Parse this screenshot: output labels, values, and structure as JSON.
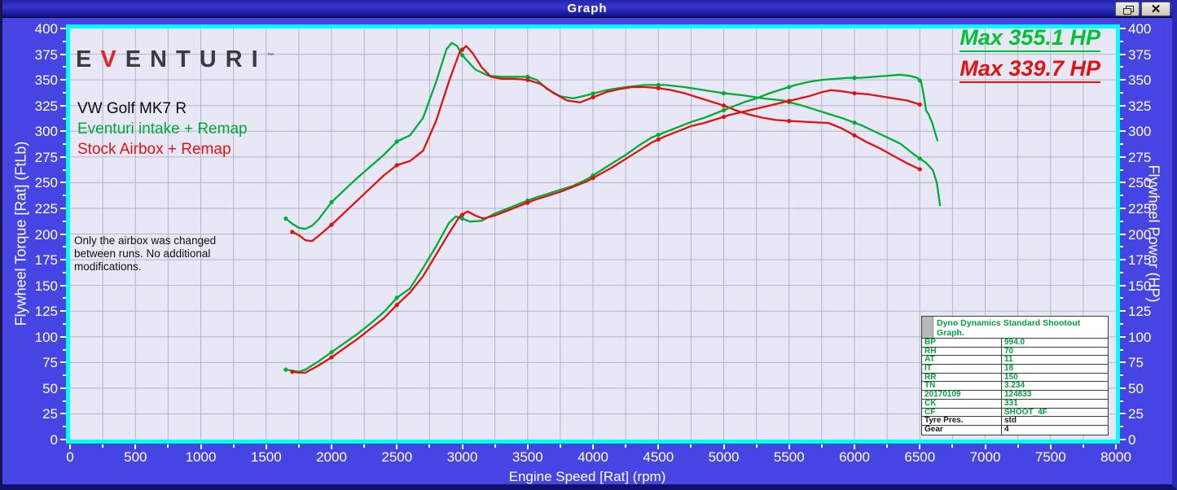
{
  "window": {
    "title": "Graph"
  },
  "branding": {
    "logo_e": "E",
    "logo_v": "V",
    "logo_rest": "ENTURI",
    "logo_tm": "TM"
  },
  "legend": {
    "vehicle": "VW Golf MK7 R",
    "run_green": "Eventuri intake + Remap",
    "run_red": "Stock Airbox + Remap"
  },
  "annotations": {
    "max_green": "Max 355.1 HP",
    "max_red": "Max 339.7 HP",
    "note_line1": "Only the airbox was changed",
    "note_line2": "between runs. No additional",
    "note_line3": "modifications."
  },
  "axes": {
    "x": {
      "label": "Engine Speed [Rat] (rpm)",
      "min": 0,
      "max": 8000,
      "tick_step": 500,
      "grid_step": 250
    },
    "y_left": {
      "label": "Flywheel Torque [Rat] (FtLb)",
      "min": 0,
      "max": 400,
      "tick_step": 25,
      "minor_step": 12.5
    },
    "y_right": {
      "label": "Flywheel Power (HP)",
      "min": 0,
      "max": 400,
      "tick_step": 25,
      "minor_step": 12.5
    }
  },
  "info_table": {
    "header": "Dyno Dynamics Standard Shootout Graph.",
    "rows": [
      {
        "label": "BP",
        "value": "994.0",
        "color": "green"
      },
      {
        "label": "RH",
        "value": "70",
        "color": "green"
      },
      {
        "label": "AT",
        "value": "11",
        "color": "green"
      },
      {
        "label": "IT",
        "value": "18",
        "color": "green"
      },
      {
        "label": "RR",
        "value": "150",
        "color": "green"
      },
      {
        "label": "TN",
        "value": "3.234",
        "color": "green"
      },
      {
        "label": "20170109",
        "value": "124833",
        "color": "green"
      },
      {
        "label": "CK",
        "value": "331",
        "color": "green"
      },
      {
        "label": "CF",
        "value": "SHOOT_4F",
        "color": "green"
      },
      {
        "label": "Tyre Pres.",
        "value": "std",
        "color": "black"
      },
      {
        "label": "Gear",
        "value": "4",
        "color": "black"
      }
    ]
  },
  "colors": {
    "green": "#00ad36",
    "red": "#df1212",
    "grid": "#b4b4cb",
    "frame": "#00ffff",
    "plot_bg": "#e7e7f6"
  },
  "chart_data": {
    "type": "line",
    "title": "Dyno Dynamics Standard Shootout Graph",
    "xlabel": "Engine Speed [Rat] (rpm)",
    "ylabel_left": "Flywheel Torque [Rat] (FtLb)",
    "ylabel_right": "Flywheel Power (HP)",
    "xlim": [
      0,
      8000
    ],
    "ylim": [
      0,
      400
    ],
    "x_tick_step": 500,
    "x_grid_step": 250,
    "y_tick_step": 25,
    "grid": true,
    "max_power_green_hp": 355.1,
    "max_power_red_hp": 339.7,
    "series": [
      {
        "id": "eventuri-torque",
        "name": "Eventuri intake + Remap - Flywheel Torque (FtLb)",
        "color": "#00ad36",
        "points": [
          [
            1650,
            215
          ],
          [
            1700,
            210
          ],
          [
            1750,
            206
          ],
          [
            1800,
            205
          ],
          [
            1850,
            208
          ],
          [
            1900,
            214
          ],
          [
            2000,
            231
          ],
          [
            2100,
            243
          ],
          [
            2200,
            255
          ],
          [
            2300,
            266
          ],
          [
            2400,
            277
          ],
          [
            2500,
            290
          ],
          [
            2550,
            293
          ],
          [
            2600,
            296
          ],
          [
            2700,
            313
          ],
          [
            2800,
            348
          ],
          [
            2880,
            380
          ],
          [
            2920,
            386
          ],
          [
            2960,
            383
          ],
          [
            3000,
            374
          ],
          [
            3100,
            360
          ],
          [
            3200,
            354
          ],
          [
            3300,
            353
          ],
          [
            3400,
            353
          ],
          [
            3500,
            353
          ],
          [
            3570,
            350
          ],
          [
            3650,
            341
          ],
          [
            3750,
            334
          ],
          [
            3850,
            332
          ],
          [
            3950,
            335
          ],
          [
            4100,
            340
          ],
          [
            4250,
            343
          ],
          [
            4400,
            345
          ],
          [
            4550,
            345
          ],
          [
            4700,
            343
          ],
          [
            4850,
            340
          ],
          [
            5000,
            337
          ],
          [
            5150,
            335
          ],
          [
            5300,
            332
          ],
          [
            5450,
            330
          ],
          [
            5600,
            325
          ],
          [
            5750,
            319
          ],
          [
            5900,
            313
          ],
          [
            6050,
            306
          ],
          [
            6200,
            297
          ],
          [
            6350,
            288
          ],
          [
            6450,
            278
          ],
          [
            6550,
            269
          ],
          [
            6600,
            262
          ],
          [
            6630,
            250
          ],
          [
            6655,
            228
          ]
        ]
      },
      {
        "id": "stock-torque",
        "name": "Stock Airbox + Remap - Flywheel Torque (FtLb)",
        "color": "#df1212",
        "points": [
          [
            1700,
            202
          ],
          [
            1750,
            199
          ],
          [
            1800,
            194
          ],
          [
            1850,
            193
          ],
          [
            1900,
            198
          ],
          [
            2000,
            209
          ],
          [
            2100,
            221
          ],
          [
            2200,
            233
          ],
          [
            2300,
            245
          ],
          [
            2400,
            257
          ],
          [
            2500,
            267
          ],
          [
            2600,
            271
          ],
          [
            2700,
            281
          ],
          [
            2800,
            310
          ],
          [
            2900,
            349
          ],
          [
            2980,
            377
          ],
          [
            3030,
            383
          ],
          [
            3080,
            376
          ],
          [
            3150,
            362
          ],
          [
            3220,
            353
          ],
          [
            3300,
            351
          ],
          [
            3400,
            351
          ],
          [
            3500,
            350
          ],
          [
            3600,
            346
          ],
          [
            3700,
            337
          ],
          [
            3800,
            330
          ],
          [
            3900,
            328
          ],
          [
            4000,
            333
          ],
          [
            4100,
            338
          ],
          [
            4200,
            341
          ],
          [
            4300,
            343
          ],
          [
            4400,
            343
          ],
          [
            4500,
            342
          ],
          [
            4600,
            340
          ],
          [
            4700,
            337
          ],
          [
            4800,
            333
          ],
          [
            4900,
            329
          ],
          [
            5000,
            325
          ],
          [
            5100,
            320
          ],
          [
            5200,
            316
          ],
          [
            5300,
            313
          ],
          [
            5400,
            311
          ],
          [
            5500,
            310
          ],
          [
            5650,
            309
          ],
          [
            5800,
            308
          ],
          [
            5900,
            303
          ],
          [
            6000,
            296
          ],
          [
            6100,
            289
          ],
          [
            6200,
            283
          ],
          [
            6300,
            276
          ],
          [
            6400,
            269
          ],
          [
            6500,
            263
          ]
        ]
      },
      {
        "id": "eventuri-power",
        "name": "Eventuri intake + Remap - Flywheel Power (HP)",
        "color": "#00ad36",
        "points": [
          [
            1650,
            68
          ],
          [
            1700,
            67
          ],
          [
            1750,
            66
          ],
          [
            1800,
            68
          ],
          [
            1900,
            76
          ],
          [
            2000,
            85
          ],
          [
            2100,
            94
          ],
          [
            2200,
            103
          ],
          [
            2300,
            113
          ],
          [
            2400,
            124
          ],
          [
            2500,
            138
          ],
          [
            2600,
            147
          ],
          [
            2700,
            167
          ],
          [
            2800,
            188
          ],
          [
            2900,
            211
          ],
          [
            2950,
            217
          ],
          [
            3000,
            215
          ],
          [
            3060,
            212
          ],
          [
            3150,
            213
          ],
          [
            3250,
            220
          ],
          [
            3350,
            225
          ],
          [
            3450,
            230
          ],
          [
            3550,
            235
          ],
          [
            3650,
            239
          ],
          [
            3750,
            243
          ],
          [
            3850,
            247
          ],
          [
            3950,
            253
          ],
          [
            4050,
            261
          ],
          [
            4150,
            269
          ],
          [
            4250,
            277
          ],
          [
            4350,
            286
          ],
          [
            4450,
            294
          ],
          [
            4550,
            299
          ],
          [
            4650,
            304
          ],
          [
            4750,
            309
          ],
          [
            4850,
            313
          ],
          [
            4950,
            318
          ],
          [
            5050,
            323
          ],
          [
            5150,
            328
          ],
          [
            5250,
            332
          ],
          [
            5350,
            337
          ],
          [
            5450,
            341
          ],
          [
            5550,
            345
          ],
          [
            5650,
            348
          ],
          [
            5750,
            350
          ],
          [
            5850,
            351
          ],
          [
            5950,
            352
          ],
          [
            6050,
            352
          ],
          [
            6150,
            353
          ],
          [
            6250,
            354
          ],
          [
            6350,
            355
          ],
          [
            6420,
            354
          ],
          [
            6480,
            352
          ],
          [
            6510,
            348
          ],
          [
            6530,
            335
          ],
          [
            6548,
            320
          ],
          [
            6565,
            317
          ],
          [
            6595,
            308
          ],
          [
            6635,
            291
          ]
        ]
      },
      {
        "id": "stock-power",
        "name": "Stock Airbox + Remap - Flywheel Power (HP)",
        "color": "#df1212",
        "points": [
          [
            1700,
            66
          ],
          [
            1750,
            65
          ],
          [
            1800,
            65
          ],
          [
            1900,
            72
          ],
          [
            2000,
            80
          ],
          [
            2100,
            89
          ],
          [
            2200,
            98
          ],
          [
            2300,
            108
          ],
          [
            2400,
            118
          ],
          [
            2500,
            131
          ],
          [
            2600,
            143
          ],
          [
            2700,
            159
          ],
          [
            2800,
            180
          ],
          [
            2900,
            201
          ],
          [
            2980,
            217
          ],
          [
            3040,
            222
          ],
          [
            3100,
            218
          ],
          [
            3160,
            215
          ],
          [
            3250,
            218
          ],
          [
            3350,
            223
          ],
          [
            3450,
            228
          ],
          [
            3550,
            233
          ],
          [
            3650,
            237
          ],
          [
            3750,
            241
          ],
          [
            3850,
            246
          ],
          [
            3950,
            251
          ],
          [
            4050,
            258
          ],
          [
            4150,
            265
          ],
          [
            4250,
            273
          ],
          [
            4350,
            281
          ],
          [
            4450,
            289
          ],
          [
            4550,
            295
          ],
          [
            4650,
            300
          ],
          [
            4750,
            305
          ],
          [
            4850,
            308
          ],
          [
            4950,
            312
          ],
          [
            5050,
            316
          ],
          [
            5150,
            319
          ],
          [
            5250,
            322
          ],
          [
            5350,
            325
          ],
          [
            5450,
            328
          ],
          [
            5550,
            331
          ],
          [
            5650,
            334
          ],
          [
            5750,
            338
          ],
          [
            5820,
            340
          ],
          [
            5900,
            339
          ],
          [
            6000,
            337
          ],
          [
            6100,
            336
          ],
          [
            6200,
            334
          ],
          [
            6300,
            332
          ],
          [
            6400,
            330
          ],
          [
            6500,
            326
          ]
        ]
      }
    ]
  }
}
